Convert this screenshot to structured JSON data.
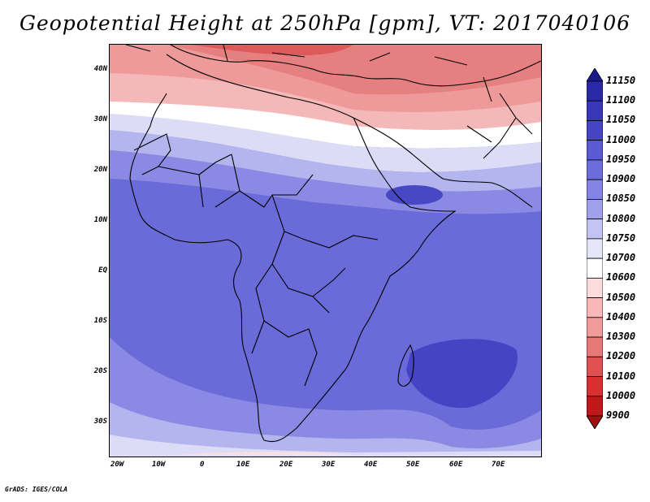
{
  "title": "Geopotential Height at 250hPa [gpm], VT: 2017040106",
  "credit": "GrADS: IGES/COLA",
  "lat_labels": [
    "40N",
    "30N",
    "20N",
    "10N",
    "EQ",
    "10S",
    "20S",
    "30S"
  ],
  "lon_labels": [
    "20W",
    "10W",
    "0",
    "10E",
    "20E",
    "30E",
    "40E",
    "50E",
    "60E",
    "70E"
  ],
  "colorbar": {
    "levels": [
      "11150",
      "11100",
      "11050",
      "11000",
      "10950",
      "10900",
      "10850",
      "10800",
      "10750",
      "10700",
      "10600",
      "10500",
      "10400",
      "10300",
      "10200",
      "10100",
      "10000",
      "9900"
    ],
    "colors": [
      "#1a1a8c",
      "#2a2aa8",
      "#3838b8",
      "#4444c4",
      "#5a5ad2",
      "#6c6cdc",
      "#8484e4",
      "#a0a0ec",
      "#c4c4f4",
      "#e6e6fa",
      "#ffffff",
      "#fcdcdc",
      "#f8b8b8",
      "#f09a9a",
      "#e87878",
      "#e05050",
      "#d83030",
      "#c01818",
      "#a01010"
    ]
  }
}
